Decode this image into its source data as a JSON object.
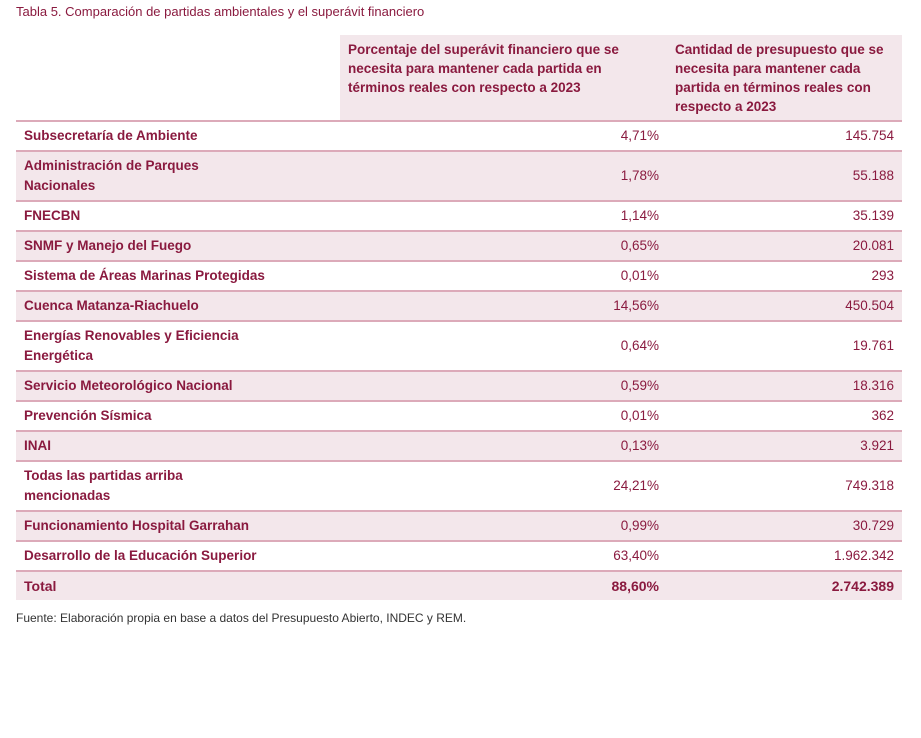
{
  "title": "Tabla 5. Comparación de partidas ambientales y el superávit financiero",
  "headers": [
    "",
    "Porcentaje del superávit financiero que se necesita para mantener cada partida en términos reales con respecto a 2023",
    "Cantidad de presupuesto que se necesita para mantener cada partida en términos reales con respecto a 2023"
  ],
  "rows": [
    {
      "name": "Subsecretaría de Ambiente",
      "pct": "4,71%",
      "amount": "145.754"
    },
    {
      "name": "Administración de Parques Nacionales",
      "pct": "1,78%",
      "amount": "55.188"
    },
    {
      "name": "FNECBN",
      "pct": "1,14%",
      "amount": "35.139"
    },
    {
      "name": "SNMF y Manejo del Fuego",
      "pct": "0,65%",
      "amount": "20.081"
    },
    {
      "name": "Sistema de Áreas Marinas Protegidas",
      "pct": "0,01%",
      "amount": "293"
    },
    {
      "name": "Cuenca Matanza-Riachuelo",
      "pct": "14,56%",
      "amount": "450.504"
    },
    {
      "name": "Energías Renovables y Eficiencia Energética",
      "pct": "0,64%",
      "amount": "19.761"
    },
    {
      "name": "Servicio Meteorológico Nacional",
      "pct": "0,59%",
      "amount": "18.316"
    },
    {
      "name": "Prevención Sísmica",
      "pct": "0,01%",
      "amount": "362"
    },
    {
      "name": "INAI",
      "pct": "0,13%",
      "amount": "3.921"
    },
    {
      "name": "Todas las partidas arriba mencionadas",
      "pct": "24,21%",
      "amount": "749.318"
    },
    {
      "name": "Funcionamiento Hospital Garrahan",
      "pct": "0,99%",
      "amount": "30.729"
    },
    {
      "name": "Desarrollo de la Educación Superior",
      "pct": "63,40%",
      "amount": "1.962.342"
    },
    {
      "name": "Total",
      "pct": "88,60%",
      "amount": "2.742.389"
    }
  ],
  "source": "Fuente: Elaboración propia en base a datos del Presupuesto Abierto, INDEC y REM.",
  "colors": {
    "text": "#8a1a3f",
    "shade": "#f3e7eb",
    "rule": "#dcaab9"
  }
}
